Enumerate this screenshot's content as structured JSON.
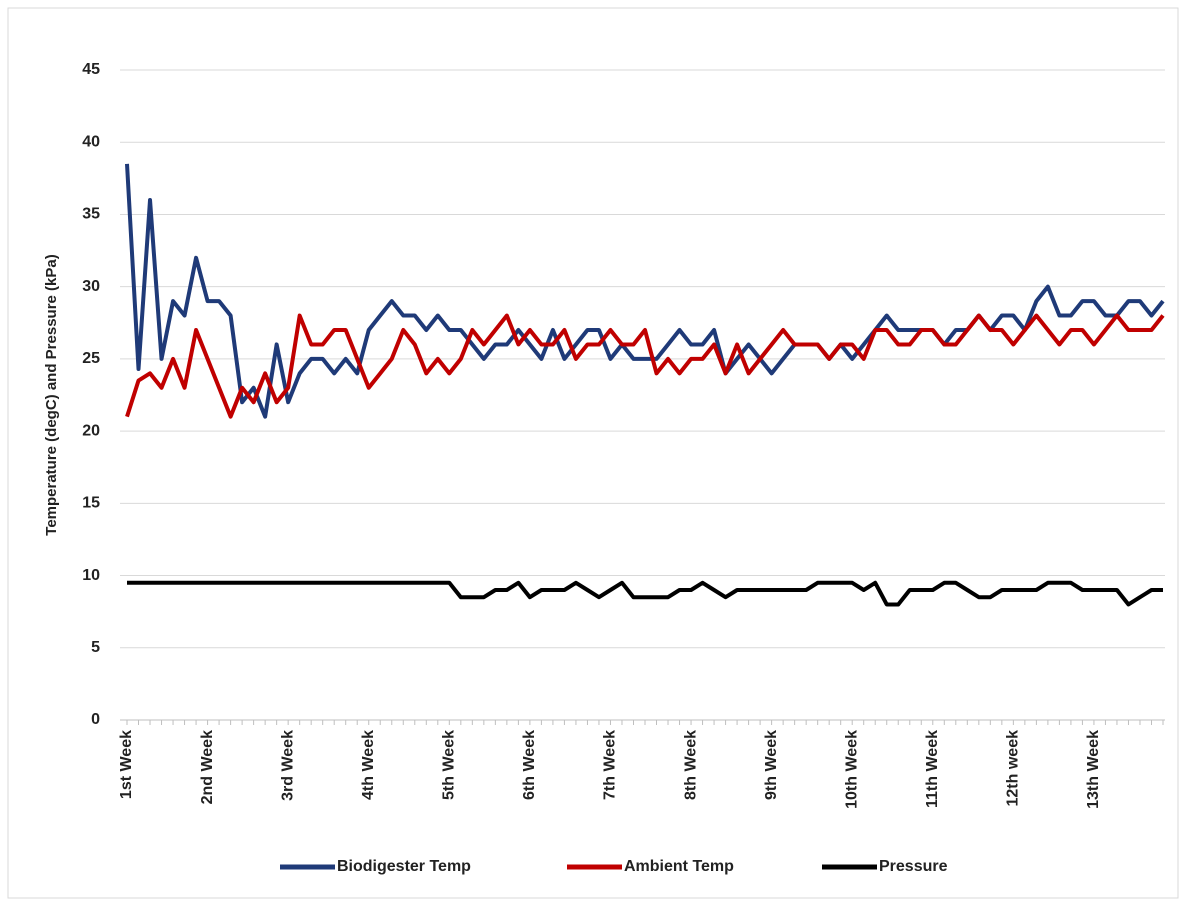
{
  "chart_data": {
    "type": "line",
    "y_label": "Temperature (degC) and Pressure (kPa)",
    "categories": [
      "1st Week",
      null,
      null,
      null,
      null,
      null,
      null,
      "2nd Week",
      null,
      null,
      null,
      null,
      null,
      null,
      "3rd Week",
      null,
      null,
      null,
      null,
      null,
      null,
      "4th Week",
      null,
      null,
      null,
      null,
      null,
      null,
      "5th Week",
      null,
      null,
      null,
      null,
      null,
      null,
      "6th Week",
      null,
      null,
      null,
      null,
      null,
      null,
      "7th Week",
      null,
      null,
      null,
      null,
      null,
      null,
      "8th Week",
      null,
      null,
      null,
      null,
      null,
      null,
      "9th Week",
      null,
      null,
      null,
      null,
      null,
      null,
      "10th Week",
      null,
      null,
      null,
      null,
      null,
      null,
      "11th Week",
      null,
      null,
      null,
      null,
      null,
      null,
      "12th week",
      null,
      null,
      null,
      null,
      null,
      null,
      "13th Week",
      null,
      null,
      null,
      null,
      null,
      null
    ],
    "series": [
      {
        "name": "Biodigester Temp",
        "color": "#1f3a78",
        "values": [
          38.5,
          24.3,
          36,
          25,
          29,
          28,
          32,
          29,
          29,
          28,
          22,
          23,
          21,
          26,
          22,
          24,
          25,
          25,
          24,
          25,
          24,
          27,
          28,
          29,
          28,
          28,
          27,
          28,
          27,
          27,
          26,
          25,
          26,
          26,
          27,
          26,
          25,
          27,
          25,
          26,
          27,
          27,
          25,
          26,
          25,
          25,
          25,
          26,
          27,
          26,
          26,
          27,
          24,
          25,
          26,
          25,
          24,
          25,
          26,
          26,
          26,
          25,
          26,
          25,
          26,
          27,
          28,
          27,
          27,
          27,
          27,
          26,
          27,
          27,
          28,
          27,
          28,
          28,
          27,
          29,
          30,
          28,
          28,
          29,
          29,
          28,
          28,
          29,
          29,
          28,
          29
        ]
      },
      {
        "name": "Ambient Temp",
        "color": "#c00000",
        "values": [
          21,
          23.5,
          24,
          23,
          25,
          23,
          27,
          25,
          23,
          21,
          23,
          22,
          24,
          22,
          23,
          28,
          26,
          26,
          27,
          27,
          25,
          23,
          24,
          25,
          27,
          26,
          24,
          25,
          24,
          25,
          27,
          26,
          27,
          28,
          26,
          27,
          26,
          26,
          27,
          25,
          26,
          26,
          27,
          26,
          26,
          27,
          24,
          25,
          24,
          25,
          25,
          26,
          24,
          26,
          24,
          25,
          26,
          27,
          26,
          26,
          26,
          25,
          26,
          26,
          25,
          27,
          27,
          26,
          26,
          27,
          27,
          26,
          26,
          27,
          28,
          27,
          27,
          26,
          27,
          28,
          27,
          26,
          27,
          27,
          26,
          27,
          28,
          27,
          27,
          27,
          28
        ]
      },
      {
        "name": "Pressure",
        "color": "#000000",
        "values": [
          9.5,
          9.5,
          9.5,
          9.5,
          9.5,
          9.5,
          9.5,
          9.5,
          9.5,
          9.5,
          9.5,
          9.5,
          9.5,
          9.5,
          9.5,
          9.5,
          9.5,
          9.5,
          9.5,
          9.5,
          9.5,
          9.5,
          9.5,
          9.5,
          9.5,
          9.5,
          9.5,
          9.5,
          9.5,
          8.5,
          8.5,
          8.5,
          9,
          9,
          9.5,
          8.5,
          9,
          9,
          9,
          9.5,
          9,
          8.5,
          9,
          9.5,
          8.5,
          8.5,
          8.5,
          8.5,
          9,
          9,
          9.5,
          9,
          8.5,
          9,
          9,
          9,
          9,
          9,
          9,
          9,
          9.5,
          9.5,
          9.5,
          9.5,
          9,
          9.5,
          8,
          8,
          9,
          9,
          9,
          9.5,
          9.5,
          9,
          8.5,
          8.5,
          9,
          9,
          9,
          9,
          9.5,
          9.5,
          9.5,
          9,
          9,
          9,
          9,
          8,
          8.5,
          9,
          9
        ]
      }
    ],
    "ylim": [
      0,
      45
    ],
    "yticks": [
      0,
      5,
      10,
      15,
      20,
      25,
      30,
      35,
      40,
      45
    ],
    "grid": true,
    "legend": "bottom"
  }
}
